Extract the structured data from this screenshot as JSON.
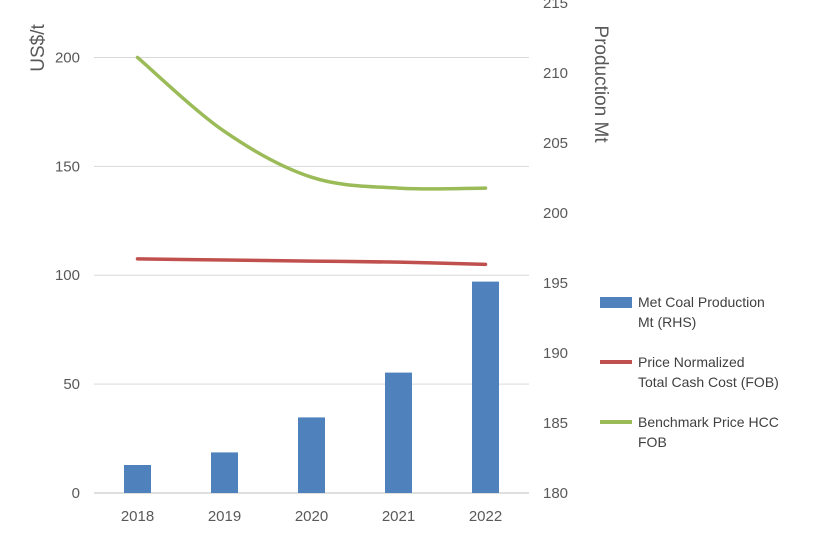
{
  "chart_data": {
    "type": "bar",
    "categories": [
      "2018",
      "2019",
      "2020",
      "2021",
      "2022"
    ],
    "ylabel": "US$/t",
    "y2label": "Production Mt",
    "ylim": [
      0,
      225
    ],
    "yticks": [
      0,
      50,
      100,
      150,
      200
    ],
    "y2lim": [
      180,
      215
    ],
    "y2ticks": [
      180,
      185,
      190,
      195,
      200,
      205,
      210,
      215
    ],
    "grid": true,
    "legend_position": "right",
    "series": [
      {
        "name": "Met Coal Production\nMt (RHS)",
        "type": "bar",
        "axis": "right",
        "values": [
          182.0,
          182.9,
          185.4,
          188.6,
          195.1
        ],
        "color": "#4F81BD"
      },
      {
        "name": " Price Normalized\nTotal Cash Cost (FOB)",
        "type": "line",
        "axis": "left",
        "values": [
          107.5,
          107,
          106.5,
          106,
          105
        ],
        "color": "#C0504D"
      },
      {
        "name": "Benchmark Price HCC\nFOB",
        "type": "line",
        "axis": "left",
        "values": [
          200,
          166,
          145,
          140,
          140
        ],
        "color": "#9BBB59"
      }
    ]
  }
}
